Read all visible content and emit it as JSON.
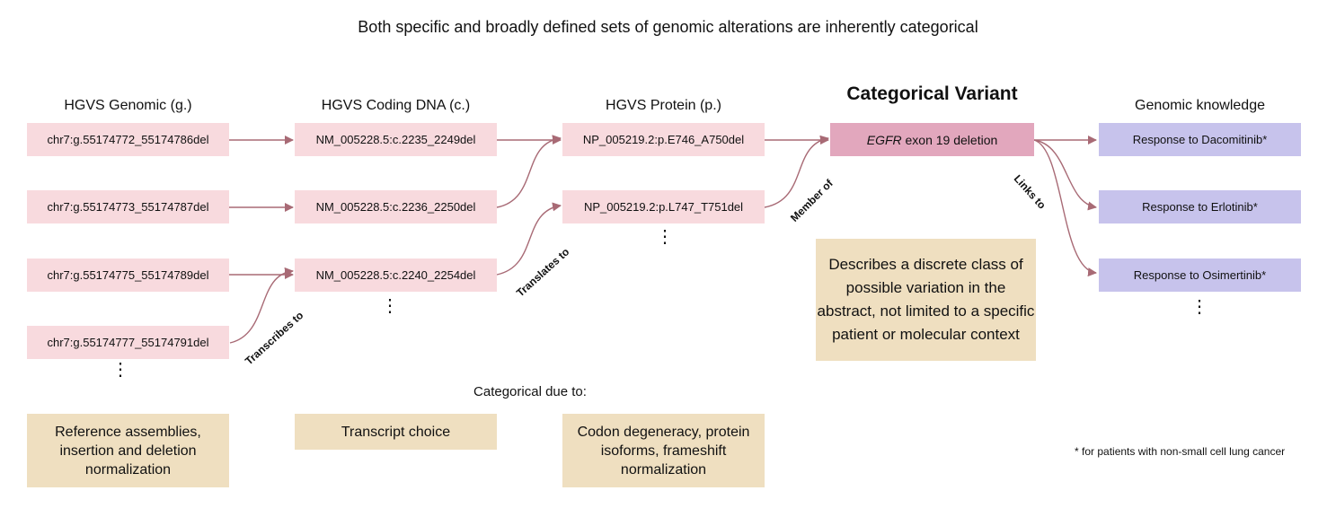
{
  "title": "Both specific and broadly defined sets of genomic alterations are inherently categorical",
  "columns": {
    "genomic": "HGVS Genomic (g.)",
    "coding": "HGVS Coding DNA (c.)",
    "protein": "HGVS Protein (p.)",
    "categorical": "Categorical Variant",
    "knowledge": "Genomic knowledge"
  },
  "genomic_items": [
    "chr7:g.55174772_55174786del",
    "chr7:g.55174773_55174787del",
    "chr7:g.55174775_55174789del",
    "chr7:g.55174777_55174791del"
  ],
  "coding_items": [
    "NM_005228.5:c.2235_2249del",
    "NM_005228.5:c.2236_2250del",
    "NM_005228.5:c.2240_2254del"
  ],
  "protein_items": [
    "NP_005219.2:p.E746_A750del",
    "NP_005219.2:p.L747_T751del"
  ],
  "categorical_variant": {
    "gene": "EGFR",
    "rest": " exon 19 deletion"
  },
  "knowledge_items": [
    "Response to Dacomitinib*",
    "Response to Erlotinib*",
    "Response to Osimertinib*"
  ],
  "edge_labels": {
    "transcribes": "Transcribes to",
    "translates": "Translates to",
    "member": "Member of",
    "links": "Links to"
  },
  "description": "Describes a discrete class of possible variation in the abstract, not limited to a specific patient or molecular context",
  "categorical_due_to": "Categorical due to:",
  "reasons": [
    "Reference assemblies, insertion and deletion normalization",
    "Transcript choice",
    "Codon degeneracy, protein isoforms, frameshift normalization"
  ],
  "footnote": "* for patients with non-small cell lung cancer",
  "ellipsis": "⋮",
  "colors": {
    "pink_box": "#f8dade",
    "categorical_box": "#e2a7bd",
    "knowledge_box": "#c7c3ec",
    "tan_box": "#efdfc0",
    "arrow": "#a86a75"
  }
}
